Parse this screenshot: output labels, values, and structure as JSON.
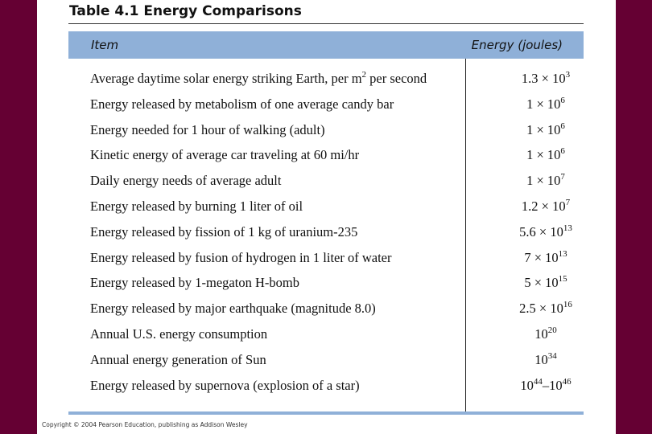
{
  "header": {
    "title": "Table 4.1  Energy Comparisons"
  },
  "table": {
    "columns": [
      "Item",
      "Energy (joules)"
    ],
    "rows": [
      [
        [
          "Average daytime solar energy striking Earth, per m",
          "2",
          " per second"
        ],
        [
          "1.3 × 10",
          "3"
        ]
      ],
      [
        [
          "Energy released by metabolism of one average candy bar"
        ],
        [
          "1 × 10",
          "6"
        ]
      ],
      [
        [
          "Energy needed for 1 hour of walking (adult)"
        ],
        [
          "1 × 10",
          "6"
        ]
      ],
      [
        [
          "Kinetic energy of average car traveling at 60 mi/hr"
        ],
        [
          "1 × 10",
          "6"
        ]
      ],
      [
        [
          "Daily energy needs of average adult"
        ],
        [
          "1 × 10",
          "7"
        ]
      ],
      [
        [
          "Energy released by burning 1 liter of oil"
        ],
        [
          "1.2 × 10",
          "7"
        ]
      ],
      [
        [
          "Energy released by fission of 1 kg of uranium-235"
        ],
        [
          "5.6 × 10",
          "13"
        ]
      ],
      [
        [
          "Energy released by fusion of hydrogen in 1 liter of water"
        ],
        [
          "7 × 10",
          "13"
        ]
      ],
      [
        [
          "Energy released by 1-megaton H-bomb"
        ],
        [
          "5 × 10",
          "15"
        ]
      ],
      [
        [
          "Energy released by major earthquake (magnitude 8.0)"
        ],
        [
          "2.5 × 10",
          "16"
        ]
      ],
      [
        [
          "Annual U.S. energy consumption"
        ],
        [
          "10",
          "20"
        ]
      ],
      [
        [
          "Annual energy generation of Sun"
        ],
        [
          "10",
          "34"
        ]
      ],
      [
        [
          "Energy released by supernova (explosion of a star)"
        ],
        [
          "10",
          "44",
          "–10",
          "46"
        ]
      ]
    ]
  },
  "footer": {
    "copyright": "Copyright © 2004 Pearson Education, publishing as Addison Wesley"
  }
}
